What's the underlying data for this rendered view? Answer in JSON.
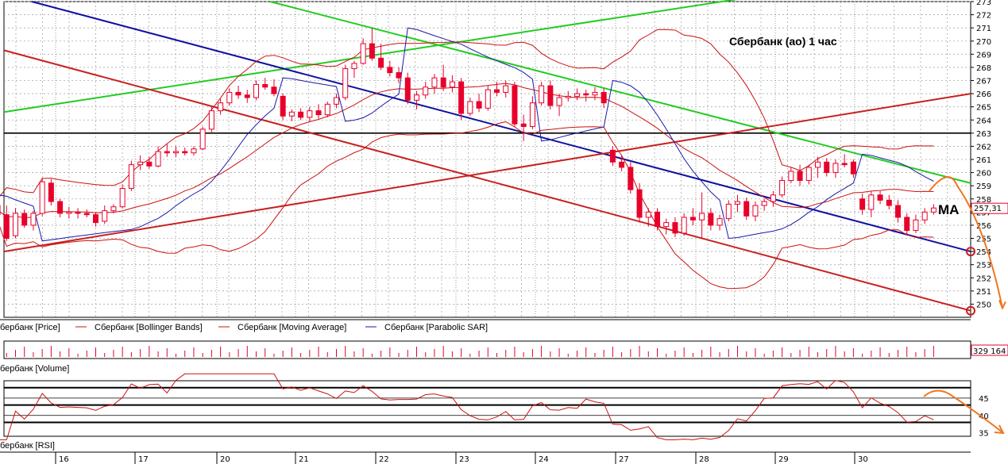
{
  "chart_data": {
    "type": "candlestick",
    "title": "Сбербанк (ао)   1 час",
    "annotation": "MA",
    "colors": {
      "candle": "#e8002b",
      "bands": "#cc1111",
      "sar": "#1a1aaa",
      "rsi": "#cc1111",
      "green": "#22cc22",
      "blue": "#1010a0",
      "red": "#c82020",
      "orange": "#ee7722"
    },
    "price_axis": {
      "ylim": [
        249,
        273
      ],
      "ticks": [
        250,
        251,
        252,
        253,
        254,
        255,
        256,
        257,
        258,
        259,
        260,
        261,
        262,
        263,
        264,
        265,
        266,
        267,
        268,
        269,
        270,
        271,
        272,
        273
      ]
    },
    "last_price": "257,31",
    "horizontal_level": 263,
    "x_tick_labels": [
      "16",
      "17",
      "20",
      "21",
      "22",
      "23",
      "24",
      "27",
      "28",
      "29",
      "30"
    ],
    "legend": [
      "бербанк [Price]",
      "Сбербанк [Bollinger Bands]",
      "Сбербанк [Moving Average]",
      "Сбербанк [Parabolic SAR]"
    ],
    "candles_per_day": 9,
    "candles": [
      {
        "o": 257.8,
        "h": 258.4,
        "l": 257.0,
        "c": 257.4
      },
      {
        "o": 257.4,
        "h": 257.9,
        "l": 256.9,
        "c": 257.3
      },
      {
        "o": 257.5,
        "h": 258.0,
        "l": 256.5,
        "c": 256.8
      },
      {
        "o": 256.8,
        "h": 257.5,
        "l": 254.8,
        "c": 255.0
      },
      {
        "o": 255.2,
        "h": 257.3,
        "l": 255.0,
        "c": 256.9
      },
      {
        "o": 256.9,
        "h": 257.2,
        "l": 255.8,
        "c": 256.0
      },
      {
        "o": 256.0,
        "h": 257.1,
        "l": 255.6,
        "c": 256.9
      },
      {
        "o": 256.9,
        "h": 259.6,
        "l": 256.7,
        "c": 259.3
      },
      {
        "o": 259.2,
        "h": 259.5,
        "l": 257.5,
        "c": 257.8
      },
      {
        "o": 257.8,
        "h": 258.0,
        "l": 256.6,
        "c": 256.9
      },
      {
        "o": 256.9,
        "h": 257.4,
        "l": 256.5,
        "c": 257.0
      },
      {
        "o": 257.0,
        "h": 257.3,
        "l": 256.5,
        "c": 256.9
      },
      {
        "o": 256.9,
        "h": 257.2,
        "l": 256.6,
        "c": 256.8
      },
      {
        "o": 256.8,
        "h": 257.0,
        "l": 255.9,
        "c": 256.2
      },
      {
        "o": 256.3,
        "h": 257.5,
        "l": 256.1,
        "c": 257.1
      },
      {
        "o": 257.1,
        "h": 257.6,
        "l": 256.9,
        "c": 257.4
      },
      {
        "o": 257.4,
        "h": 259.1,
        "l": 257.3,
        "c": 258.8
      },
      {
        "o": 258.8,
        "h": 260.9,
        "l": 258.6,
        "c": 260.6
      },
      {
        "o": 260.6,
        "h": 261.3,
        "l": 260.2,
        "c": 260.8
      },
      {
        "o": 260.8,
        "h": 261.2,
        "l": 260.3,
        "c": 260.5
      },
      {
        "o": 260.5,
        "h": 262.0,
        "l": 260.4,
        "c": 261.6
      },
      {
        "o": 261.6,
        "h": 262.2,
        "l": 261.2,
        "c": 261.5
      },
      {
        "o": 261.5,
        "h": 262.0,
        "l": 261.2,
        "c": 261.6
      },
      {
        "o": 261.6,
        "h": 261.9,
        "l": 261.3,
        "c": 261.5
      },
      {
        "o": 261.5,
        "h": 262.0,
        "l": 261.3,
        "c": 261.8
      },
      {
        "o": 261.8,
        "h": 263.5,
        "l": 261.7,
        "c": 263.3
      },
      {
        "o": 263.3,
        "h": 265.0,
        "l": 263.0,
        "c": 264.7
      },
      {
        "o": 264.7,
        "h": 265.6,
        "l": 264.4,
        "c": 265.3
      },
      {
        "o": 265.3,
        "h": 266.4,
        "l": 265.1,
        "c": 266.1
      },
      {
        "o": 266.1,
        "h": 266.6,
        "l": 265.6,
        "c": 265.9
      },
      {
        "o": 265.9,
        "h": 266.3,
        "l": 265.3,
        "c": 265.7
      },
      {
        "o": 265.7,
        "h": 267.0,
        "l": 265.5,
        "c": 266.7
      },
      {
        "o": 266.7,
        "h": 267.2,
        "l": 266.3,
        "c": 266.5
      },
      {
        "o": 266.5,
        "h": 267.1,
        "l": 265.8,
        "c": 266.0
      },
      {
        "o": 265.8,
        "h": 266.0,
        "l": 264.0,
        "c": 264.3
      },
      {
        "o": 264.3,
        "h": 264.8,
        "l": 263.9,
        "c": 264.6
      },
      {
        "o": 264.6,
        "h": 264.9,
        "l": 264.0,
        "c": 264.2
      },
      {
        "o": 264.2,
        "h": 265.0,
        "l": 263.9,
        "c": 264.7
      },
      {
        "o": 264.7,
        "h": 265.2,
        "l": 264.1,
        "c": 264.4
      },
      {
        "o": 264.4,
        "h": 265.4,
        "l": 264.2,
        "c": 265.2
      },
      {
        "o": 265.2,
        "h": 266.0,
        "l": 264.9,
        "c": 265.7
      },
      {
        "o": 265.7,
        "h": 268.2,
        "l": 265.5,
        "c": 267.9
      },
      {
        "o": 267.9,
        "h": 268.5,
        "l": 267.2,
        "c": 268.3
      },
      {
        "o": 268.3,
        "h": 270.2,
        "l": 268.2,
        "c": 269.8
      },
      {
        "o": 269.8,
        "h": 271.0,
        "l": 268.5,
        "c": 268.7
      },
      {
        "o": 268.7,
        "h": 269.8,
        "l": 267.8,
        "c": 268.0
      },
      {
        "o": 268.0,
        "h": 268.5,
        "l": 267.3,
        "c": 267.6
      },
      {
        "o": 267.6,
        "h": 268.0,
        "l": 266.8,
        "c": 267.2
      },
      {
        "o": 267.2,
        "h": 267.6,
        "l": 265.2,
        "c": 265.5
      },
      {
        "o": 265.5,
        "h": 266.2,
        "l": 264.8,
        "c": 265.9
      },
      {
        "o": 265.9,
        "h": 266.9,
        "l": 265.6,
        "c": 266.5
      },
      {
        "o": 266.5,
        "h": 267.5,
        "l": 266.0,
        "c": 267.2
      },
      {
        "o": 267.2,
        "h": 268.2,
        "l": 266.2,
        "c": 266.5
      },
      {
        "o": 266.5,
        "h": 267.4,
        "l": 266.1,
        "c": 266.9
      },
      {
        "o": 266.9,
        "h": 267.2,
        "l": 264.0,
        "c": 264.5
      },
      {
        "o": 264.5,
        "h": 265.7,
        "l": 264.3,
        "c": 265.4
      },
      {
        "o": 265.4,
        "h": 266.0,
        "l": 264.6,
        "c": 264.9
      },
      {
        "o": 264.9,
        "h": 266.6,
        "l": 264.7,
        "c": 266.3
      },
      {
        "o": 266.3,
        "h": 266.9,
        "l": 265.8,
        "c": 266.1
      },
      {
        "o": 266.1,
        "h": 267.0,
        "l": 265.7,
        "c": 266.6
      },
      {
        "o": 266.6,
        "h": 266.9,
        "l": 263.5,
        "c": 263.7
      },
      {
        "o": 263.7,
        "h": 264.4,
        "l": 262.4,
        "c": 263.5
      },
      {
        "o": 263.5,
        "h": 265.8,
        "l": 263.3,
        "c": 265.3
      },
      {
        "o": 265.3,
        "h": 266.9,
        "l": 265.1,
        "c": 266.6
      },
      {
        "o": 266.6,
        "h": 267.0,
        "l": 264.8,
        "c": 265.1
      },
      {
        "o": 265.1,
        "h": 266.0,
        "l": 264.3,
        "c": 265.7
      },
      {
        "o": 265.7,
        "h": 266.2,
        "l": 265.4,
        "c": 265.8
      },
      {
        "o": 265.8,
        "h": 266.4,
        "l": 265.5,
        "c": 266.0
      },
      {
        "o": 266.0,
        "h": 266.3,
        "l": 265.4,
        "c": 265.9
      },
      {
        "o": 265.9,
        "h": 266.5,
        "l": 265.5,
        "c": 266.1
      },
      {
        "o": 266.1,
        "h": 266.4,
        "l": 264.9,
        "c": 265.3
      },
      {
        "o": 261.7,
        "h": 262.0,
        "l": 260.5,
        "c": 260.8
      },
      {
        "o": 260.8,
        "h": 261.3,
        "l": 260.1,
        "c": 260.4
      },
      {
        "o": 260.4,
        "h": 260.8,
        "l": 258.4,
        "c": 258.7
      },
      {
        "o": 258.7,
        "h": 259.2,
        "l": 256.2,
        "c": 256.6
      },
      {
        "o": 256.6,
        "h": 257.3,
        "l": 255.9,
        "c": 257.0
      },
      {
        "o": 257.0,
        "h": 257.3,
        "l": 255.6,
        "c": 255.9
      },
      {
        "o": 255.9,
        "h": 256.5,
        "l": 255.3,
        "c": 256.2
      },
      {
        "o": 256.2,
        "h": 256.6,
        "l": 255.1,
        "c": 255.4
      },
      {
        "o": 255.4,
        "h": 256.9,
        "l": 255.2,
        "c": 256.6
      },
      {
        "o": 256.6,
        "h": 257.3,
        "l": 256.0,
        "c": 256.4
      },
      {
        "o": 256.4,
        "h": 258.5,
        "l": 255.0,
        "c": 256.9
      },
      {
        "o": 256.9,
        "h": 257.3,
        "l": 255.6,
        "c": 256.0
      },
      {
        "o": 256.0,
        "h": 256.8,
        "l": 255.6,
        "c": 256.5
      },
      {
        "o": 256.5,
        "h": 257.9,
        "l": 256.3,
        "c": 257.6
      },
      {
        "o": 257.6,
        "h": 258.3,
        "l": 257.0,
        "c": 257.8
      },
      {
        "o": 257.8,
        "h": 258.1,
        "l": 256.4,
        "c": 256.7
      },
      {
        "o": 256.7,
        "h": 257.8,
        "l": 256.3,
        "c": 257.5
      },
      {
        "o": 257.5,
        "h": 258.0,
        "l": 257.1,
        "c": 257.8
      },
      {
        "o": 257.8,
        "h": 258.6,
        "l": 257.4,
        "c": 258.3
      },
      {
        "o": 258.3,
        "h": 259.7,
        "l": 258.1,
        "c": 259.4
      },
      {
        "o": 259.4,
        "h": 260.4,
        "l": 259.2,
        "c": 260.1
      },
      {
        "o": 260.1,
        "h": 260.6,
        "l": 259.0,
        "c": 259.4
      },
      {
        "o": 259.4,
        "h": 260.6,
        "l": 259.1,
        "c": 260.4
      },
      {
        "o": 260.4,
        "h": 261.2,
        "l": 259.6,
        "c": 260.8
      },
      {
        "o": 260.8,
        "h": 261.1,
        "l": 259.7,
        "c": 260.0
      },
      {
        "o": 260.0,
        "h": 261.0,
        "l": 259.6,
        "c": 260.7
      },
      {
        "o": 260.7,
        "h": 261.4,
        "l": 260.4,
        "c": 260.6
      },
      {
        "o": 260.8,
        "h": 261.0,
        "l": 259.6,
        "c": 259.9
      },
      {
        "o": 258.0,
        "h": 258.4,
        "l": 256.8,
        "c": 257.2
      },
      {
        "o": 257.2,
        "h": 258.6,
        "l": 256.6,
        "c": 258.3
      },
      {
        "o": 258.3,
        "h": 258.6,
        "l": 257.6,
        "c": 257.9
      },
      {
        "o": 257.9,
        "h": 258.3,
        "l": 257.2,
        "c": 257.5
      },
      {
        "o": 257.5,
        "h": 257.9,
        "l": 256.2,
        "c": 256.6
      },
      {
        "o": 256.6,
        "h": 256.9,
        "l": 255.3,
        "c": 255.6
      },
      {
        "o": 255.6,
        "h": 256.8,
        "l": 255.4,
        "c": 256.4
      },
      {
        "o": 256.4,
        "h": 257.3,
        "l": 256.1,
        "c": 257.0
      },
      {
        "o": 257.0,
        "h": 257.6,
        "l": 256.8,
        "c": 257.31
      }
    ]
  },
  "volume_panel": {
    "label": "бербанк [Volume]",
    "last_value": "329 164"
  },
  "rsi_panel": {
    "label": "бербанк [RSI]",
    "ticks": [
      "45",
      "40",
      "35"
    ],
    "levels": [
      48,
      45,
      43,
      40,
      38
    ]
  }
}
